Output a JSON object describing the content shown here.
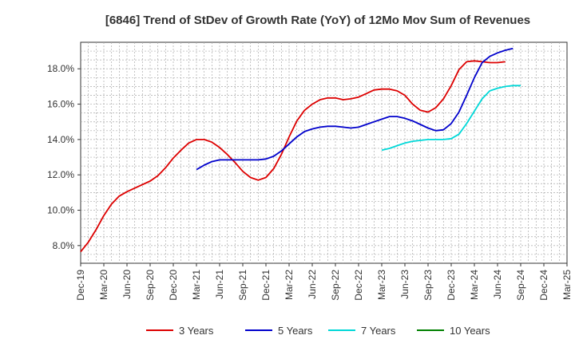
{
  "chart_data": {
    "type": "line",
    "title": "[6846]  Trend of StDev of Growth Rate (YoY) of 12Mo Mov Sum of Revenues",
    "xlabel": "",
    "ylabel": "",
    "x_labels": [
      "Dec-19",
      "Mar-20",
      "Jun-20",
      "Sep-20",
      "Dec-20",
      "Mar-21",
      "Jun-21",
      "Sep-21",
      "Dec-21",
      "Mar-22",
      "Jun-22",
      "Sep-22",
      "Dec-22",
      "Mar-23",
      "Jun-23",
      "Sep-23",
      "Dec-23",
      "Mar-24",
      "Jun-24",
      "Sep-24",
      "Dec-24",
      "Mar-25"
    ],
    "x_range": [
      0,
      63
    ],
    "y_ticks": [
      8.0,
      10.0,
      12.0,
      14.0,
      16.0,
      18.0
    ],
    "y_tick_labels": [
      "8.0%",
      "10.0%",
      "12.0%",
      "14.0%",
      "16.0%",
      "18.0%"
    ],
    "ylim": [
      7.0,
      19.5
    ],
    "grid": true,
    "legend_position": "bottom",
    "series": [
      {
        "name": "3 Years",
        "color": "#dd0000",
        "start_index": 0,
        "values": [
          7.65,
          8.2,
          8.9,
          9.7,
          10.35,
          10.8,
          11.05,
          11.25,
          11.45,
          11.65,
          11.95,
          12.4,
          12.95,
          13.4,
          13.8,
          14.0,
          14.0,
          13.85,
          13.55,
          13.15,
          12.7,
          12.2,
          11.85,
          11.7,
          11.85,
          12.35,
          13.15,
          14.15,
          15.05,
          15.65,
          16.0,
          16.25,
          16.35,
          16.35,
          16.25,
          16.3,
          16.4,
          16.6,
          16.8,
          16.85,
          16.85,
          16.75,
          16.5,
          16.0,
          15.65,
          15.55,
          15.8,
          16.3,
          17.05,
          17.95,
          18.4,
          18.45,
          18.4,
          18.35,
          18.35,
          18.4
        ]
      },
      {
        "name": "5 Years",
        "color": "#0000cc",
        "start_index": 15,
        "values": [
          12.3,
          12.55,
          12.75,
          12.85,
          12.85,
          12.85,
          12.85,
          12.85,
          12.85,
          12.9,
          13.05,
          13.35,
          13.75,
          14.15,
          14.45,
          14.6,
          14.7,
          14.75,
          14.75,
          14.7,
          14.65,
          14.7,
          14.85,
          15.0,
          15.15,
          15.3,
          15.3,
          15.2,
          15.05,
          14.85,
          14.65,
          14.5,
          14.55,
          14.9,
          15.55,
          16.5,
          17.5,
          18.35,
          18.7,
          18.9,
          19.05,
          19.15
        ]
      },
      {
        "name": "7 Years",
        "color": "#00d8d8",
        "start_index": 39,
        "values": [
          13.4,
          13.5,
          13.65,
          13.8,
          13.9,
          13.95,
          14.0,
          14.0,
          14.0,
          14.05,
          14.3,
          14.9,
          15.6,
          16.3,
          16.75,
          16.9,
          17.0,
          17.05,
          17.05
        ]
      },
      {
        "name": "10 Years",
        "color": "#008000",
        "start_index": 0,
        "values": []
      }
    ]
  }
}
